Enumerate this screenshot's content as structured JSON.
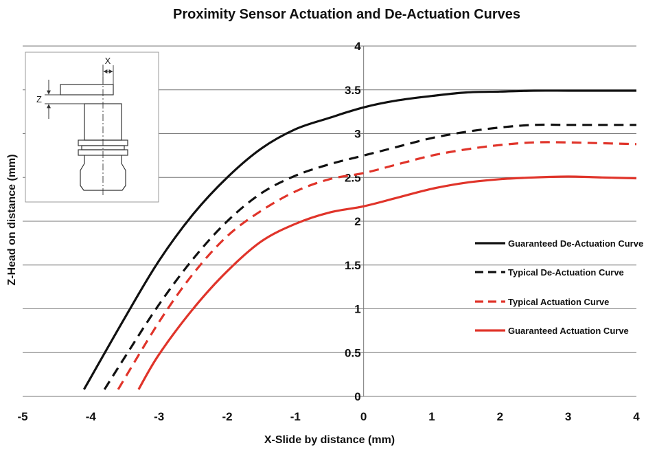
{
  "chart_data": {
    "type": "line",
    "title": "Proximity Sensor Actuation and De-Actuation Curves",
    "xlabel": "X-Slide by distance (mm)",
    "ylabel": "Z-Head on distance (mm)",
    "xlim": [
      -5,
      4
    ],
    "ylim": [
      0,
      4
    ],
    "x_ticks": [
      "-5",
      "-4",
      "-3",
      "-2",
      "-1",
      "0",
      "1",
      "2",
      "3",
      "4"
    ],
    "y_ticks": [
      "0",
      "0.5",
      "1",
      "1.5",
      "2",
      "2.5",
      "3",
      "3.5",
      "4"
    ],
    "grid": "horizontal",
    "legend_position": "right",
    "inset_labels": {
      "x": "X",
      "z": "Z"
    },
    "series": [
      {
        "name": "Guaranteed De-Actuation Curve",
        "color": "#111111",
        "style": "solid",
        "x": [
          -4.1,
          -3.5,
          -3.0,
          -2.5,
          -2.0,
          -1.5,
          -1.0,
          -0.5,
          0.0,
          0.5,
          1.0,
          1.5,
          2.0,
          2.5,
          3.0,
          3.5,
          4.0
        ],
        "y": [
          0.08,
          0.9,
          1.55,
          2.08,
          2.5,
          2.83,
          3.05,
          3.18,
          3.3,
          3.38,
          3.43,
          3.47,
          3.48,
          3.49,
          3.49,
          3.49,
          3.49
        ]
      },
      {
        "name": "Typical De-Actuation Curve",
        "color": "#111111",
        "style": "dashed",
        "x": [
          -3.8,
          -3.5,
          -3.0,
          -2.5,
          -2.0,
          -1.5,
          -1.0,
          -0.5,
          0.0,
          0.5,
          1.0,
          1.5,
          2.0,
          2.5,
          3.0,
          3.5,
          4.0
        ],
        "y": [
          0.08,
          0.45,
          1.05,
          1.57,
          2.0,
          2.32,
          2.52,
          2.65,
          2.75,
          2.85,
          2.95,
          3.02,
          3.07,
          3.1,
          3.1,
          3.1,
          3.1
        ]
      },
      {
        "name": "Typical Actuation Curve",
        "color": "#e0342a",
        "style": "dashed",
        "x": [
          -3.6,
          -3.0,
          -2.5,
          -2.0,
          -1.5,
          -1.0,
          -0.5,
          0.0,
          0.5,
          1.0,
          1.5,
          2.0,
          2.5,
          3.0,
          3.5,
          4.0
        ],
        "y": [
          0.08,
          0.85,
          1.4,
          1.83,
          2.12,
          2.34,
          2.48,
          2.55,
          2.65,
          2.75,
          2.82,
          2.87,
          2.9,
          2.9,
          2.89,
          2.88
        ]
      },
      {
        "name": "Guaranteed Actuation Curve",
        "color": "#e0342a",
        "style": "solid",
        "x": [
          -3.3,
          -3.0,
          -2.5,
          -2.0,
          -1.5,
          -1.0,
          -0.5,
          0.0,
          0.5,
          1.0,
          1.5,
          2.0,
          2.5,
          3.0,
          3.5,
          4.0
        ],
        "y": [
          0.08,
          0.48,
          1.0,
          1.43,
          1.77,
          1.97,
          2.1,
          2.17,
          2.27,
          2.37,
          2.44,
          2.48,
          2.5,
          2.51,
          2.5,
          2.49
        ]
      }
    ]
  }
}
